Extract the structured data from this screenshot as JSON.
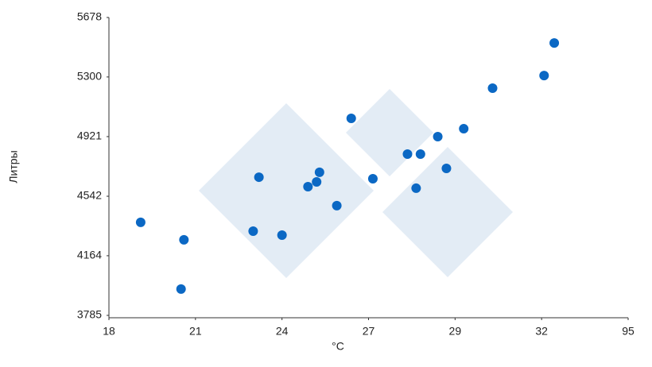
{
  "chart_data": {
    "type": "scatter",
    "x_label": "°C",
    "y_label": "Литры",
    "color": "#0b68c4",
    "x": [
      19.1,
      20.6,
      20.5,
      23.0,
      23.2,
      24.0,
      24.9,
      25.2,
      25.3,
      25.9,
      26.4,
      27.1,
      27.9,
      28.2,
      28.1,
      28.6,
      28.8,
      29.3,
      30.3,
      33.8,
      41.2
    ],
    "values": [
      4376,
      4265,
      3952,
      4320,
      4663,
      4295,
      4603,
      4633,
      4694,
      4482,
      5037,
      4653,
      4810,
      4810,
      4593,
      4921,
      4719,
      4971,
      5229,
      5309,
      5516
    ],
    "xlim": [
      18,
      95
    ],
    "xticks": [
      18,
      21,
      24,
      27,
      29,
      32,
      95
    ],
    "ylim": [
      3785,
      5678
    ],
    "yticks": [
      3785,
      4164,
      4542,
      4921,
      5300,
      5678
    ]
  }
}
